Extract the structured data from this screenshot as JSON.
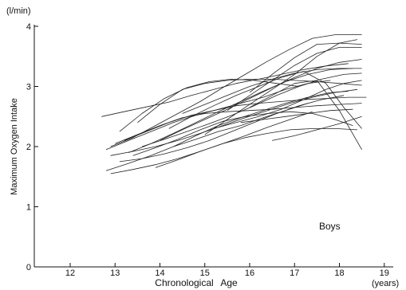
{
  "chart_data": {
    "type": "line",
    "ylabel": "Maximum Oxygen Intake",
    "y_unit": "(l/min)",
    "xlabel": "Chronological Age",
    "x_unit": "(years)",
    "annotation": "Boys",
    "xlim": [
      11.2,
      19.2
    ],
    "ylim": [
      0,
      4
    ],
    "x_ticks": [
      12,
      13,
      14,
      15,
      16,
      17,
      18,
      19
    ],
    "y_ticks": [
      0,
      1,
      2,
      3,
      4
    ],
    "grid": false,
    "colors": {
      "axis": "#111111",
      "line": "#222222"
    },
    "series": [
      {
        "x": [
          12.7,
          13.2,
          13.7,
          14.2,
          14.7,
          15.2,
          15.7,
          16.2,
          16.7,
          17.2,
          17.7,
          18.2
        ],
        "y": [
          2.5,
          2.58,
          2.66,
          2.74,
          2.85,
          2.95,
          3.05,
          3.12,
          3.2,
          3.28,
          3.34,
          3.38
        ]
      },
      {
        "x": [
          12.9,
          13.4,
          13.9,
          14.4,
          14.9,
          15.4,
          15.9,
          16.4,
          16.9,
          17.4,
          17.9,
          18.5
        ],
        "y": [
          2.0,
          2.15,
          2.35,
          2.55,
          2.75,
          2.98,
          3.2,
          3.42,
          3.62,
          3.8,
          3.86,
          3.86
        ]
      },
      {
        "x": [
          12.8,
          13.3,
          13.8,
          14.3,
          14.8,
          15.3,
          15.8,
          16.3,
          16.8,
          17.3,
          17.8
        ],
        "y": [
          1.95,
          2.1,
          2.25,
          2.4,
          2.52,
          2.62,
          2.72,
          2.82,
          2.95,
          3.05,
          3.1
        ]
      },
      {
        "x": [
          12.9,
          13.4,
          13.9,
          14.4,
          14.9,
          15.4,
          15.9,
          16.4,
          16.9,
          17.4,
          17.9,
          18.4
        ],
        "y": [
          1.85,
          1.92,
          2.0,
          2.1,
          2.22,
          2.35,
          2.48,
          2.6,
          2.72,
          2.82,
          2.9,
          2.95
        ]
      },
      {
        "x": [
          13.1,
          13.6,
          14.1,
          14.6,
          15.1,
          15.6,
          16.1,
          16.6,
          17.1,
          17.6,
          18.1
        ],
        "y": [
          1.75,
          1.8,
          1.88,
          1.98,
          2.1,
          2.25,
          2.4,
          2.55,
          2.68,
          2.78,
          2.85
        ]
      },
      {
        "x": [
          12.8,
          13.3,
          13.8,
          14.3,
          14.8,
          15.3,
          15.8,
          16.3,
          16.8,
          17.3
        ],
        "y": [
          1.6,
          1.72,
          1.85,
          2.0,
          2.12,
          2.25,
          2.35,
          2.48,
          2.6,
          2.72
        ]
      },
      {
        "x": [
          13.2,
          13.7,
          14.2,
          14.7,
          15.2,
          15.7,
          16.2,
          16.7,
          17.2,
          17.7,
          18.2,
          18.6
        ],
        "y": [
          2.1,
          2.25,
          2.4,
          2.52,
          2.6,
          2.68,
          2.72,
          2.75,
          2.78,
          2.8,
          2.82,
          2.82
        ]
      },
      {
        "x": [
          13.5,
          14.0,
          14.5,
          15.0,
          15.5,
          16.0,
          16.5,
          17.0,
          17.5,
          18.0,
          18.5
        ],
        "y": [
          2.4,
          2.7,
          2.95,
          3.05,
          3.1,
          3.12,
          3.12,
          3.1,
          3.08,
          3.05,
          3.02
        ]
      },
      {
        "x": [
          13.0,
          13.5,
          14.0,
          14.5,
          15.0,
          15.5,
          16.0,
          16.5,
          17.0,
          17.5,
          18.0,
          18.5
        ],
        "y": [
          2.05,
          2.2,
          2.35,
          2.48,
          2.55,
          2.58,
          2.6,
          2.62,
          2.65,
          2.68,
          2.7,
          2.72
        ]
      },
      {
        "x": [
          13.3,
          13.8,
          14.3,
          14.8,
          15.3,
          15.8,
          16.3,
          16.8,
          17.3,
          17.8,
          18.3
        ],
        "y": [
          1.9,
          2.05,
          2.22,
          2.4,
          2.58,
          2.75,
          2.92,
          3.08,
          3.2,
          3.28,
          3.3
        ]
      },
      {
        "x": [
          13.6,
          14.1,
          14.6,
          15.1,
          15.6,
          16.1,
          16.6,
          17.1,
          17.6,
          18.1,
          18.5
        ],
        "y": [
          2.0,
          2.12,
          2.25,
          2.38,
          2.52,
          2.68,
          2.85,
          3.0,
          3.12,
          3.2,
          3.22
        ]
      },
      {
        "x": [
          14.0,
          14.5,
          15.0,
          15.5,
          16.0,
          16.5,
          17.0,
          17.5,
          18.0,
          18.5
        ],
        "y": [
          2.1,
          2.28,
          2.45,
          2.62,
          2.8,
          2.98,
          3.15,
          3.3,
          3.4,
          3.45
        ]
      },
      {
        "x": [
          13.4,
          13.9,
          14.4,
          14.9,
          15.4,
          15.9,
          16.4,
          16.9,
          17.4,
          17.9,
          18.3
        ],
        "y": [
          1.85,
          1.98,
          2.12,
          2.28,
          2.42,
          2.5,
          2.55,
          2.58,
          2.55,
          2.45,
          2.35
        ]
      },
      {
        "x": [
          13.9,
          14.4,
          14.9,
          15.4,
          15.9,
          16.4,
          16.9,
          17.4,
          17.9,
          18.4
        ],
        "y": [
          1.65,
          1.78,
          1.92,
          2.05,
          2.15,
          2.22,
          2.28,
          2.3,
          2.3,
          2.28
        ]
      },
      {
        "x": [
          14.2,
          14.7,
          15.2,
          15.7,
          16.2,
          16.7,
          17.2,
          17.7,
          18.1,
          18.5
        ],
        "y": [
          2.3,
          2.5,
          2.68,
          2.85,
          3.0,
          3.15,
          3.25,
          3.05,
          2.65,
          2.3
        ]
      },
      {
        "x": [
          15.0,
          15.5,
          16.0,
          16.5,
          17.0,
          17.5,
          18.0,
          18.4
        ],
        "y": [
          2.2,
          2.45,
          2.7,
          2.95,
          3.2,
          3.5,
          3.72,
          3.78
        ]
      },
      {
        "x": [
          15.5,
          16.0,
          16.5,
          17.0,
          17.5,
          18.0,
          18.5
        ],
        "y": [
          2.6,
          2.85,
          3.1,
          3.35,
          3.55,
          3.65,
          3.65
        ]
      },
      {
        "x": [
          16.0,
          16.5,
          17.0,
          17.5,
          18.0,
          18.5
        ],
        "y": [
          2.9,
          3.2,
          3.48,
          3.7,
          3.72,
          3.7
        ]
      },
      {
        "x": [
          14.5,
          15.0,
          15.5,
          16.0,
          16.5,
          17.0,
          17.5,
          18.0,
          18.5
        ],
        "y": [
          2.55,
          2.7,
          2.85,
          3.0,
          3.12,
          3.22,
          3.28,
          3.3,
          3.3
        ]
      },
      {
        "x": [
          15.2,
          15.7,
          16.2,
          16.7,
          17.2,
          17.7,
          18.1,
          18.5
        ],
        "y": [
          2.3,
          2.4,
          2.5,
          2.62,
          2.78,
          2.95,
          3.05,
          3.1
        ]
      },
      {
        "x": [
          15.8,
          16.3,
          16.8,
          17.3,
          17.8,
          18.3
        ],
        "y": [
          2.4,
          2.45,
          2.5,
          2.55,
          2.6,
          2.62
        ]
      },
      {
        "x": [
          16.5,
          17.0,
          17.5,
          18.0,
          18.5
        ],
        "y": [
          2.1,
          2.18,
          2.28,
          2.38,
          2.5
        ]
      },
      {
        "x": [
          16.0,
          16.5,
          17.0,
          17.5,
          18.0,
          18.5
        ],
        "y": [
          2.65,
          2.85,
          3.05,
          3.1,
          2.6,
          1.95
        ]
      },
      {
        "x": [
          13.1,
          13.6,
          14.1,
          14.6,
          15.1,
          15.6,
          16.1,
          16.6,
          17.1
        ],
        "y": [
          2.25,
          2.55,
          2.8,
          2.98,
          3.08,
          3.12,
          3.1,
          3.05,
          3.0
        ]
      },
      {
        "x": [
          14.3,
          14.8,
          15.3,
          15.8,
          16.3,
          16.8,
          17.3,
          17.8,
          18.2
        ],
        "y": [
          2.0,
          2.18,
          2.35,
          2.48,
          2.6,
          2.72,
          2.82,
          2.9,
          2.92
        ]
      },
      {
        "x": [
          12.9,
          13.4,
          13.9,
          14.4,
          14.9,
          15.4,
          15.9,
          16.4,
          16.9,
          17.4
        ],
        "y": [
          1.55,
          1.62,
          1.7,
          1.8,
          1.92,
          2.05,
          2.18,
          2.32,
          2.45,
          2.58
        ]
      }
    ]
  }
}
